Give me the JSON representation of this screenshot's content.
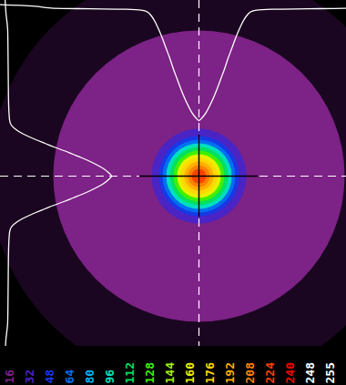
{
  "chart_data": {
    "type": "heatmap",
    "xlim": [
      0,
      380
    ],
    "ylim": [
      0,
      380
    ],
    "tick_labels": false,
    "center": [
      218,
      193
    ],
    "radial_profile": {
      "radius": [
        0,
        4,
        8,
        12,
        16,
        20,
        24,
        28,
        32,
        36,
        40,
        44,
        48,
        52,
        56,
        62,
        80,
        120,
        160,
        180,
        230
      ],
      "intensity": [
        245,
        238,
        228,
        214,
        198,
        180,
        160,
        140,
        118,
        98,
        78,
        60,
        44,
        32,
        24,
        20,
        18,
        17,
        16,
        12,
        8
      ]
    },
    "color_bar": {
      "ticks": [
        16,
        32,
        48,
        64,
        80,
        96,
        112,
        128,
        144,
        160,
        176,
        192,
        208,
        224,
        240,
        248,
        255
      ],
      "colors": [
        "#1a0620",
        "#7d2286",
        "#4a24c4",
        "#1838e6",
        "#0070f0",
        "#00b4f0",
        "#00e0c0",
        "#00e060",
        "#40f000",
        "#a0f000",
        "#e8f000",
        "#ffd800",
        "#ffb000",
        "#ff8000",
        "#ff4000",
        "#ff0000",
        "#ffffff",
        "#ffffff"
      ]
    }
  }
}
